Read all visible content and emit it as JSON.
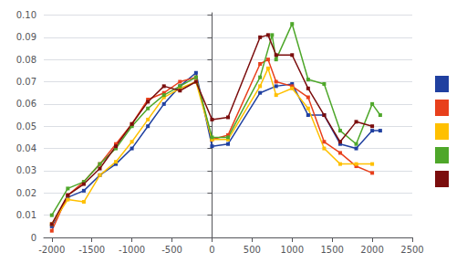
{
  "chart_data": {
    "type": "line",
    "marker": "square",
    "series": [
      {
        "color": "#2040a0",
        "x": [
          -2000,
          -1800,
          -1600,
          -1400,
          -1200,
          -1000,
          -800,
          -600,
          -400,
          -200,
          0,
          200,
          600,
          800,
          1000,
          1200,
          1400,
          1600,
          1800,
          2000,
          2100
        ],
        "values": [
          0.005,
          0.018,
          0.021,
          0.028,
          0.033,
          0.04,
          0.05,
          0.06,
          0.068,
          0.074,
          0.041,
          0.042,
          0.065,
          0.068,
          0.069,
          0.055,
          0.055,
          0.042,
          0.04,
          0.048,
          0.048
        ]
      },
      {
        "color": "#e8401c",
        "x": [
          -2000,
          -1800,
          -1600,
          -1400,
          -1200,
          -1000,
          -800,
          -600,
          -400,
          -200,
          0,
          200,
          600,
          700,
          800,
          1000,
          1200,
          1400,
          1600,
          1800,
          2000
        ],
        "values": [
          0.003,
          0.019,
          0.025,
          0.033,
          0.042,
          0.051,
          0.062,
          0.065,
          0.07,
          0.072,
          0.044,
          0.046,
          0.078,
          0.08,
          0.07,
          0.068,
          0.063,
          0.043,
          0.038,
          0.032,
          0.029
        ]
      },
      {
        "color": "#ffc000",
        "x": [
          -2000,
          -1800,
          -1600,
          -1400,
          -1200,
          -1000,
          -800,
          -600,
          -400,
          -200,
          0,
          200,
          600,
          700,
          800,
          1000,
          1200,
          1400,
          1600,
          1800,
          2000
        ],
        "values": [
          0.006,
          0.017,
          0.016,
          0.028,
          0.034,
          0.043,
          0.053,
          0.063,
          0.067,
          0.07,
          0.044,
          0.044,
          0.068,
          0.076,
          0.064,
          0.067,
          0.058,
          0.04,
          0.033,
          0.033,
          0.033
        ]
      },
      {
        "color": "#4ea72a",
        "x": [
          -2000,
          -1800,
          -1600,
          -1400,
          -1200,
          -1000,
          -800,
          -600,
          -400,
          -200,
          0,
          200,
          600,
          750,
          800,
          1000,
          1200,
          1400,
          1600,
          1800,
          2000,
          2100
        ],
        "values": [
          0.01,
          0.022,
          0.025,
          0.033,
          0.04,
          0.05,
          0.058,
          0.064,
          0.068,
          0.072,
          0.045,
          0.045,
          0.072,
          0.091,
          0.08,
          0.096,
          0.071,
          0.069,
          0.048,
          0.042,
          0.06,
          0.055
        ]
      },
      {
        "color": "#7b0d0d",
        "x": [
          -2000,
          -1800,
          -1600,
          -1400,
          -1200,
          -1000,
          -800,
          -600,
          -400,
          -200,
          0,
          200,
          600,
          700,
          800,
          1000,
          1200,
          1400,
          1600,
          1800,
          2000
        ],
        "values": [
          0.006,
          0.019,
          0.024,
          0.031,
          0.041,
          0.051,
          0.061,
          0.068,
          0.066,
          0.07,
          0.053,
          0.054,
          0.09,
          0.091,
          0.082,
          0.082,
          0.067,
          0.055,
          0.043,
          0.052,
          0.05
        ]
      }
    ],
    "xlim": [
      -2100,
      2500
    ],
    "xticks": [
      -2000,
      -1500,
      -1000,
      -500,
      0,
      500,
      1000,
      1500,
      2000,
      2500
    ],
    "ylim": [
      0,
      0.101
    ],
    "yticks": [
      0,
      0.01,
      0.02,
      0.03,
      0.04,
      0.05,
      0.06,
      0.07,
      0.08,
      0.09,
      {
        "value": 0.1,
        "label": "0.10"
      }
    ],
    "grid": true,
    "legend": "right"
  }
}
